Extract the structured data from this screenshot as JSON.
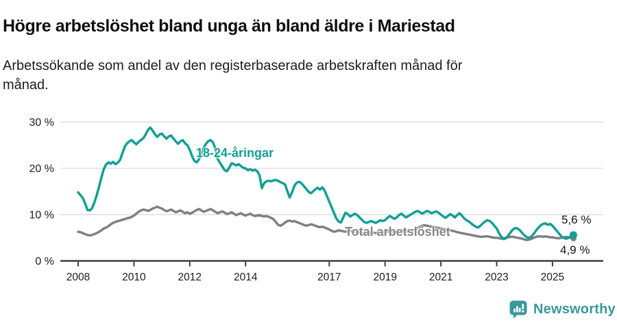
{
  "header": {
    "title": "Högre arbetslöshet bland unga än bland äldre i Mariestad",
    "subtitle": "Arbetssökande som andel av den registerbaserade arbetskraften månad för månad."
  },
  "chart_data": {
    "type": "line",
    "title": "Högre arbetslöshet bland unga än bland äldre i Mariestad",
    "unit": "%",
    "x_range": {
      "start": "2008-01",
      "end": "2025-10"
    },
    "x_interval": "monthly",
    "ylim": [
      0,
      32
    ],
    "grid": "horizontal",
    "legend_position": "inline-labels",
    "x_ticks": [
      2008,
      2010,
      2012,
      2014,
      2017,
      2019,
      2021,
      2023,
      2025
    ],
    "y_ticks": [
      {
        "value": 0,
        "label": "0 %"
      },
      {
        "value": 10,
        "label": "10 %"
      },
      {
        "value": 20,
        "label": "20 %"
      },
      {
        "value": 30,
        "label": "30 %"
      }
    ],
    "series": [
      {
        "name": "18-24-åringar",
        "color": "#12a094",
        "end_label": "5,6 %",
        "last_value": 5.6,
        "values": [
          14.8,
          14.2,
          13.6,
          12.4,
          11.0,
          10.9,
          11.4,
          12.6,
          14.2,
          16.0,
          18.0,
          19.8,
          20.8,
          21.3,
          21.0,
          21.4,
          20.9,
          21.2,
          21.8,
          23.2,
          24.6,
          25.4,
          25.8,
          26.1,
          25.6,
          25.2,
          25.7,
          26.1,
          26.5,
          27.3,
          28.3,
          28.8,
          28.2,
          27.4,
          26.8,
          27.3,
          27.5,
          26.9,
          26.4,
          26.9,
          27.1,
          26.4,
          25.8,
          25.3,
          25.8,
          26.1,
          25.4,
          25.0,
          24.0,
          22.6,
          21.6,
          21.3,
          22.0,
          23.2,
          24.4,
          25.3,
          25.9,
          26.1,
          25.6,
          24.3,
          22.0,
          21.2,
          20.4,
          19.6,
          19.4,
          20.2,
          21.1,
          20.9,
          20.6,
          20.9,
          20.5,
          20.1,
          20.0,
          19.6,
          19.8,
          19.5,
          19.7,
          19.4,
          18.5,
          15.7,
          16.8,
          17.2,
          17.3,
          17.2,
          17.4,
          17.5,
          17.3,
          17.0,
          16.8,
          16.5,
          15.0,
          13.7,
          14.8,
          16.2,
          16.9,
          17.1,
          16.8,
          16.2,
          15.6,
          15.0,
          14.6,
          15.0,
          15.5,
          15.8,
          15.4,
          15.9,
          15.2,
          14.0,
          12.8,
          11.6,
          10.4,
          9.2,
          8.5,
          8.3,
          9.4,
          10.4,
          10.1,
          9.6,
          9.9,
          10.2,
          9.9,
          9.4,
          8.9,
          8.4,
          8.2,
          8.4,
          8.6,
          8.4,
          8.2,
          8.5,
          8.8,
          8.6,
          8.8,
          9.3,
          9.7,
          9.4,
          9.1,
          9.4,
          9.9,
          10.2,
          9.8,
          9.4,
          9.7,
          10.0,
          10.3,
          10.6,
          10.8,
          10.5,
          10.2,
          10.5,
          10.8,
          10.6,
          10.3,
          10.5,
          10.7,
          10.4,
          10.0,
          9.6,
          9.3,
          9.7,
          10.1,
          9.8,
          9.4,
          9.9,
          10.3,
          9.8,
          9.2,
          8.8,
          8.5,
          8.1,
          7.7,
          7.4,
          7.2,
          7.6,
          8.1,
          8.5,
          8.8,
          8.6,
          8.2,
          7.6,
          7.0,
          6.0,
          5.2,
          4.7,
          4.9,
          5.5,
          6.2,
          6.8,
          7.1,
          7.0,
          6.6,
          6.0,
          5.5,
          5.1,
          5.0,
          5.3,
          5.9,
          6.6,
          7.2,
          7.7,
          8.0,
          8.1,
          7.8,
          8.0,
          7.6,
          7.0,
          6.4,
          5.8,
          5.2,
          4.9,
          4.8,
          5.0,
          5.3,
          5.6
        ]
      },
      {
        "name": "Total arbetslöshet",
        "color": "#808086",
        "end_label": "4,9 %",
        "last_value": 4.9,
        "values": [
          6.3,
          6.2,
          6.0,
          5.8,
          5.6,
          5.5,
          5.6,
          5.8,
          6.0,
          6.3,
          6.6,
          7.0,
          7.2,
          7.5,
          7.9,
          8.2,
          8.4,
          8.6,
          8.7,
          8.9,
          9.0,
          9.2,
          9.3,
          9.5,
          9.8,
          10.2,
          10.6,
          10.9,
          11.1,
          11.0,
          10.8,
          11.0,
          11.3,
          11.5,
          11.7,
          11.5,
          11.3,
          11.0,
          10.7,
          10.9,
          11.1,
          10.8,
          10.5,
          10.7,
          10.9,
          10.6,
          10.3,
          10.5,
          10.2,
          10.4,
          10.7,
          11.0,
          11.2,
          10.9,
          10.6,
          10.8,
          11.0,
          11.2,
          10.9,
          10.6,
          10.3,
          10.5,
          10.7,
          10.4,
          10.1,
          10.3,
          10.5,
          10.2,
          9.9,
          10.1,
          10.3,
          10.0,
          9.8,
          10.0,
          10.2,
          9.9,
          9.7,
          9.8,
          9.9,
          9.7,
          9.6,
          9.7,
          9.5,
          9.3,
          9.0,
          8.4,
          7.8,
          7.6,
          7.9,
          8.3,
          8.6,
          8.7,
          8.5,
          8.6,
          8.4,
          8.2,
          8.0,
          7.8,
          7.6,
          7.7,
          7.9,
          7.8,
          7.6,
          7.4,
          7.3,
          7.4,
          7.2,
          7.0,
          6.8,
          6.5,
          6.3,
          6.4,
          6.6,
          6.5,
          6.4,
          6.3,
          6.4,
          6.5,
          6.4,
          6.3,
          6.2,
          6.1,
          6.0,
          5.9,
          6.0,
          6.1,
          6.2,
          6.1,
          6.0,
          6.1,
          6.2,
          6.1,
          6.2,
          6.3,
          6.4,
          6.3,
          6.2,
          6.3,
          6.4,
          6.5,
          6.4,
          6.3,
          6.4,
          6.5,
          6.6,
          6.8,
          7.1,
          7.4,
          7.6,
          7.7,
          7.6,
          7.5,
          7.4,
          7.3,
          7.2,
          7.1,
          7.0,
          6.9,
          6.8,
          6.7,
          6.6,
          6.5,
          6.4,
          6.2,
          6.1,
          6.0,
          5.9,
          5.8,
          5.7,
          5.6,
          5.5,
          5.4,
          5.3,
          5.2,
          5.2,
          5.3,
          5.3,
          5.2,
          5.1,
          5.0,
          5.0,
          4.9,
          4.8,
          4.9,
          5.0,
          5.1,
          5.2,
          5.2,
          5.1,
          5.0,
          4.9,
          4.8,
          4.6,
          4.5,
          4.6,
          4.8,
          5.0,
          5.2,
          5.3,
          5.3,
          5.2,
          5.3,
          5.2,
          5.1,
          5.1,
          5.0,
          4.9,
          4.9,
          5.0,
          5.1,
          5.2,
          5.1,
          5.0,
          4.9
        ]
      }
    ]
  },
  "colors": {
    "accent_teal": "#12a094",
    "series_gray": "#808086",
    "brand_teal": "#38989b",
    "axis": "#3d3d3d",
    "gridline": "#e3e3e3",
    "text": "#1c1c1c"
  },
  "footer": {
    "brand": "Newsworthy"
  }
}
